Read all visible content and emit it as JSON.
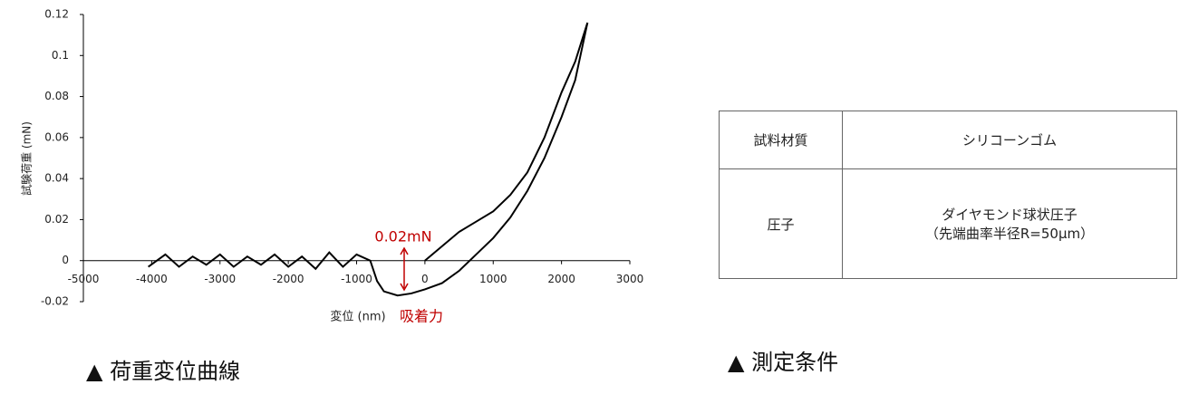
{
  "chart_data": {
    "type": "line",
    "ylabel": "試験荷重 (mN)",
    "xlabel": "変位 (nm)",
    "xlim": [
      -5000,
      3000
    ],
    "xticks": [
      -5000,
      -4000,
      -3000,
      -2000,
      -1000,
      0,
      1000,
      2000,
      3000
    ],
    "ylim": [
      -0.02,
      0.12
    ],
    "yticks": [
      -0.02,
      0,
      0.02,
      0.04,
      0.06,
      0.08,
      0.1,
      0.12
    ],
    "series": [
      {
        "color": "#000000",
        "x": [
          0,
          250,
          500,
          750,
          1000,
          1250,
          1500,
          1750,
          2000,
          2200,
          2380
        ],
        "values": [
          0.0,
          0.007,
          0.014,
          0.019,
          0.024,
          0.032,
          0.043,
          0.06,
          0.082,
          0.097,
          0.116
        ]
      },
      {
        "color": "#000000",
        "x": [
          2380,
          2200,
          2000,
          1750,
          1500,
          1250,
          1000,
          750,
          500,
          250,
          0,
          -200,
          -400,
          -600,
          -700,
          -800,
          -1000,
          -1200,
          -1400,
          -1600,
          -1800,
          -2000,
          -2200,
          -2400,
          -2600,
          -2800,
          -3000,
          -3200,
          -3400,
          -3600,
          -3800,
          -4050
        ],
        "values": [
          0.116,
          0.088,
          0.07,
          0.05,
          0.034,
          0.021,
          0.011,
          0.003,
          -0.005,
          -0.011,
          -0.014,
          -0.016,
          -0.017,
          -0.015,
          -0.01,
          0.0,
          0.003,
          -0.003,
          0.004,
          -0.004,
          0.002,
          -0.003,
          0.003,
          -0.002,
          0.002,
          -0.003,
          0.003,
          -0.002,
          0.002,
          -0.003,
          0.003,
          -0.003
        ]
      }
    ],
    "annotations": [
      {
        "text": "0.02mN",
        "color": "#c00000"
      },
      {
        "text": "吸着力",
        "color": "#c00000"
      }
    ],
    "caption": "▲ 荷重変位曲線"
  },
  "table": {
    "caption": "▲ 測定条件",
    "rows": [
      [
        "試料材質",
        [
          "シリコーンゴム"
        ]
      ],
      [
        "圧子",
        [
          "ダイヤモンド球状圧子",
          "（先端曲率半径R=50μm）"
        ]
      ]
    ]
  }
}
